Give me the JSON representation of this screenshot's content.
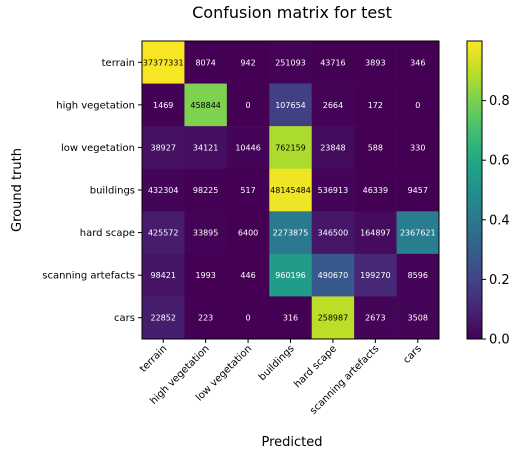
{
  "chart_data": {
    "type": "heatmap",
    "title": "Confusion matrix for test",
    "xlabel": "Predicted",
    "ylabel": "Ground truth",
    "x_categories": [
      "terrain",
      "high vegetation",
      "low vegetation",
      "buildings",
      "hard scape",
      "scanning artefacts",
      "cars"
    ],
    "y_categories": [
      "terrain",
      "high vegetation",
      "low vegetation",
      "buildings",
      "hard scape",
      "scanning artefacts",
      "cars"
    ],
    "values": [
      [
        37377331,
        8074,
        942,
        251093,
        43716,
        3893,
        346
      ],
      [
        1469,
        458844,
        0,
        107654,
        2664,
        172,
        0
      ],
      [
        38927,
        34121,
        10446,
        762159,
        23848,
        588,
        330
      ],
      [
        432304,
        98225,
        517,
        48145484,
        536913,
        46339,
        9457
      ],
      [
        425572,
        33895,
        6400,
        2273875,
        346500,
        164897,
        2367621
      ],
      [
        98421,
        1993,
        446,
        960196,
        490670,
        199270,
        8596
      ],
      [
        22852,
        223,
        0,
        316,
        258987,
        2673,
        3508
      ]
    ],
    "normalize": "row",
    "colormap": "viridis",
    "colorbar": {
      "range": [
        0,
        1
      ],
      "ticks": [
        "0.0",
        "0.2",
        "0.4",
        "0.6",
        "0.8"
      ]
    },
    "grid": false,
    "x_tick_rotation": 45
  }
}
